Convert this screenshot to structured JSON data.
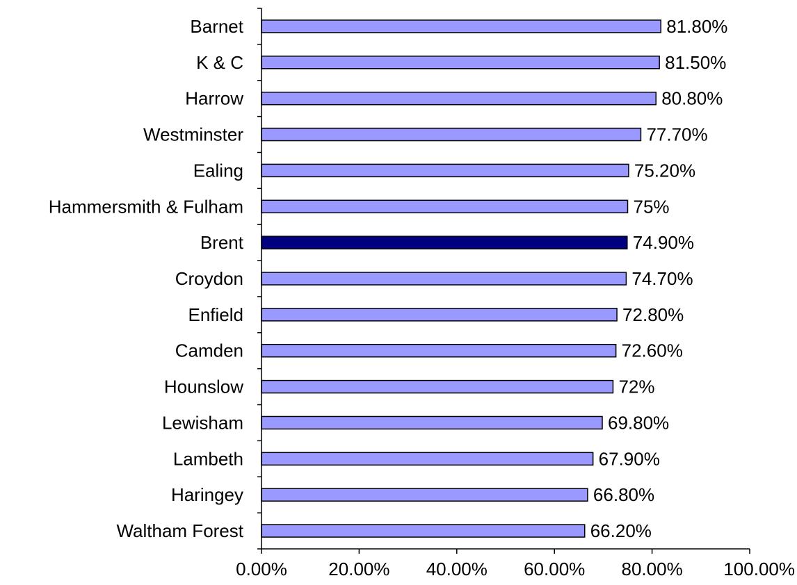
{
  "chart_data": {
    "type": "bar",
    "orientation": "horizontal",
    "title": "",
    "xlabel": "",
    "ylabel": "",
    "categories": [
      "Barnet",
      "K & C",
      "Harrow",
      "Westminster",
      "Ealing",
      "Hammersmith & Fulham",
      "Brent",
      "Croydon",
      "Enfield",
      "Camden",
      "Hounslow",
      "Lewisham",
      "Lambeth",
      "Haringey",
      "Waltham Forest"
    ],
    "values": [
      81.8,
      81.5,
      80.8,
      77.7,
      75.2,
      75.0,
      74.9,
      74.7,
      72.8,
      72.6,
      72.0,
      69.8,
      67.9,
      66.8,
      66.2
    ],
    "value_labels": [
      "81.80%",
      "81.50%",
      "80.80%",
      "77.70%",
      "75.20%",
      "75%",
      "74.90%",
      "74.70%",
      "72.80%",
      "72.60%",
      "72%",
      "69.80%",
      "67.90%",
      "66.80%",
      "66.20%"
    ],
    "highlight_index": 6,
    "xlim": [
      0,
      100
    ],
    "x_ticks": [
      0,
      20,
      40,
      60,
      80,
      100
    ],
    "x_tick_labels": [
      "0.00%",
      "20.00%",
      "40.00%",
      "60.00%",
      "80.00%",
      "100.00%"
    ],
    "grid": false,
    "legend": "none",
    "colors": {
      "bar": "#9999ff",
      "highlight": "#000080",
      "outline": "#000000",
      "axis": "#000000",
      "background": "#ffffff"
    }
  }
}
